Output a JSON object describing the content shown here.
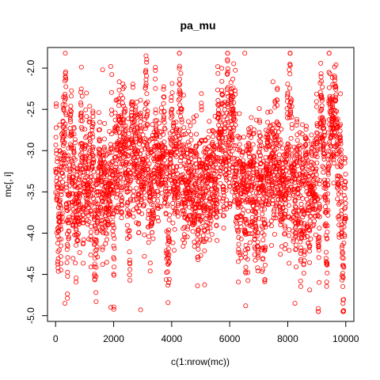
{
  "chart_data": {
    "type": "scatter",
    "title": "pa_mu",
    "xlabel": "c(1:nrow(mc))",
    "ylabel": "mc[, i]",
    "xlim": [
      -280,
      10280
    ],
    "ylim": [
      -5.07,
      -1.75
    ],
    "x_ticks": [
      0,
      2000,
      4000,
      6000,
      8000,
      10000
    ],
    "y_ticks": [
      -5.0,
      -4.5,
      -4.0,
      -3.5,
      -3.0,
      -2.5,
      -2.0
    ],
    "x_tick_labels": [
      "0",
      "2000",
      "4000",
      "6000",
      "8000",
      "10000"
    ],
    "y_tick_labels": [
      "-5.0",
      "-4.5",
      "-4.0",
      "-3.5",
      "-3.0",
      "-2.5",
      "-2.0"
    ],
    "grid": false,
    "series": [
      {
        "marker": "open-circle",
        "color": "#ff0000",
        "n": 10000,
        "summary": {
          "center": -3.3,
          "typical_min": -4.5,
          "typical_max": -2.4,
          "min": -4.95,
          "max": -1.82
        },
        "notable_points": [
          {
            "x": 6520,
            "y": -1.82
          },
          {
            "x": 1900,
            "y": -1.98
          },
          {
            "x": 1620,
            "y": -2.02
          },
          {
            "x": 8050,
            "y": -2.02
          },
          {
            "x": 2930,
            "y": -4.93
          },
          {
            "x": 1900,
            "y": -4.9
          },
          {
            "x": 6550,
            "y": -4.88
          },
          {
            "x": 320,
            "y": -4.85
          },
          {
            "x": 8250,
            "y": -4.85
          }
        ]
      }
    ]
  }
}
